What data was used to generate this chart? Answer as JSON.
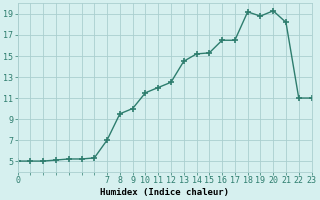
{
  "xlabel": "Humidex (Indice chaleur)",
  "x_values": [
    0,
    1,
    2,
    3,
    4,
    5,
    6,
    7,
    8,
    9,
    10,
    11,
    12,
    13,
    14,
    15,
    16,
    17,
    18,
    19,
    20,
    21,
    22,
    23
  ],
  "y_values": [
    5,
    5,
    5,
    5.1,
    5.2,
    5.2,
    5.3,
    7,
    9.5,
    10,
    11.5,
    12,
    12.5,
    14.5,
    15.2,
    15.3,
    16.5,
    16.5,
    19.2,
    18.8,
    19.3,
    18.2,
    11,
    11
  ],
  "line_color": "#2e7d6e",
  "marker": "+",
  "marker_size": 4,
  "marker_lw": 1.2,
  "line_width": 1.0,
  "bg_color": "#d6f0ef",
  "grid_color": "#aacfcf",
  "ylim": [
    4,
    20
  ],
  "xlim": [
    0,
    23
  ],
  "yticks": [
    5,
    7,
    9,
    11,
    13,
    15,
    17,
    19
  ],
  "xticks_all": [
    0,
    1,
    2,
    3,
    4,
    5,
    6,
    7,
    8,
    9,
    10,
    11,
    12,
    13,
    14,
    15,
    16,
    17,
    18,
    19,
    20,
    21,
    22,
    23
  ],
  "xtick_labels": [
    "0",
    "",
    "",
    "",
    "",
    "",
    "",
    "7",
    "8",
    "9",
    "10",
    "11",
    "12",
    "13",
    "14",
    "15",
    "16",
    "17",
    "18",
    "19",
    "20",
    "21",
    "22",
    "23"
  ],
  "label_fontsize": 6.5,
  "tick_fontsize": 6
}
